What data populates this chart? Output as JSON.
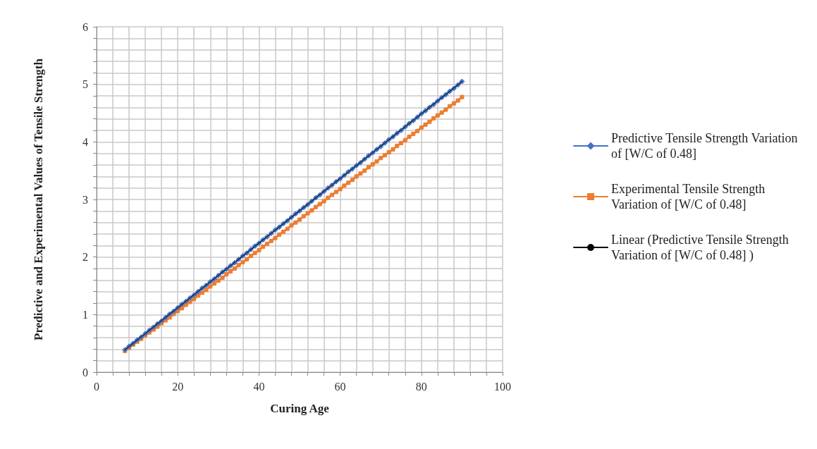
{
  "chart_data": {
    "type": "line",
    "xlabel": "Curing Age",
    "ylabel": "Predictive and Experimental Values of Tensile Strength",
    "x": [
      7,
      8,
      9,
      10,
      11,
      12,
      13,
      14,
      15,
      16,
      17,
      18,
      19,
      20,
      21,
      22,
      23,
      24,
      25,
      26,
      27,
      28,
      29,
      30,
      31,
      32,
      33,
      34,
      35,
      36,
      37,
      38,
      39,
      40,
      41,
      42,
      43,
      44,
      45,
      46,
      47,
      48,
      49,
      50,
      51,
      52,
      53,
      54,
      55,
      56,
      57,
      58,
      59,
      60,
      61,
      62,
      63,
      64,
      65,
      66,
      67,
      68,
      69,
      70,
      71,
      72,
      73,
      74,
      75,
      76,
      77,
      78,
      79,
      80,
      81,
      82,
      83,
      84,
      85,
      86,
      87,
      88,
      89,
      90
    ],
    "series": [
      {
        "name": "Predictive Tensile Strength Variation of [W/C of 0.48]",
        "color": "#4472c4",
        "marker": "diamond",
        "values": [
          0.39,
          0.45,
          0.5,
          0.56,
          0.61,
          0.67,
          0.73,
          0.78,
          0.84,
          0.89,
          0.95,
          1.01,
          1.06,
          1.12,
          1.18,
          1.23,
          1.29,
          1.34,
          1.4,
          1.46,
          1.51,
          1.57,
          1.62,
          1.68,
          1.74,
          1.79,
          1.85,
          1.9,
          1.96,
          2.02,
          2.07,
          2.13,
          2.19,
          2.24,
          2.3,
          2.35,
          2.41,
          2.47,
          2.52,
          2.58,
          2.63,
          2.69,
          2.75,
          2.8,
          2.86,
          2.91,
          2.97,
          3.03,
          3.08,
          3.14,
          3.2,
          3.25,
          3.31,
          3.36,
          3.42,
          3.48,
          3.53,
          3.59,
          3.64,
          3.7,
          3.76,
          3.81,
          3.87,
          3.92,
          3.98,
          4.04,
          4.09,
          4.15,
          4.2,
          4.26,
          4.32,
          4.37,
          4.43,
          4.49,
          4.54,
          4.6,
          4.65,
          4.71,
          4.77,
          4.82,
          4.88,
          4.93,
          4.99,
          5.05
        ]
      },
      {
        "name": "Experimental Tensile Strength Variation of [W/C of 0.48]",
        "color": "#ed7d31",
        "marker": "square",
        "values": [
          0.37,
          0.42,
          0.48,
          0.53,
          0.58,
          0.64,
          0.69,
          0.74,
          0.79,
          0.85,
          0.9,
          0.95,
          1.01,
          1.06,
          1.11,
          1.17,
          1.22,
          1.27,
          1.33,
          1.38,
          1.43,
          1.49,
          1.54,
          1.59,
          1.64,
          1.7,
          1.75,
          1.8,
          1.86,
          1.91,
          1.96,
          2.02,
          2.07,
          2.12,
          2.18,
          2.23,
          2.28,
          2.33,
          2.39,
          2.44,
          2.49,
          2.55,
          2.6,
          2.65,
          2.71,
          2.76,
          2.81,
          2.87,
          2.92,
          2.97,
          3.03,
          3.08,
          3.13,
          3.18,
          3.24,
          3.29,
          3.34,
          3.4,
          3.45,
          3.5,
          3.56,
          3.61,
          3.66,
          3.72,
          3.77,
          3.82,
          3.87,
          3.93,
          3.98,
          4.03,
          4.09,
          4.14,
          4.19,
          4.25,
          4.3,
          4.35,
          4.41,
          4.46,
          4.51,
          4.56,
          4.62,
          4.67,
          4.72,
          4.78
        ]
      },
      {
        "name": "Linear (Predictive Tensile Strength Variation of [W/C of 0.48] )",
        "color": "#000000",
        "marker": "none",
        "x": [
          7,
          90
        ],
        "values": [
          0.39,
          5.05
        ]
      }
    ],
    "xlim": [
      0,
      100
    ],
    "xticks": [
      0,
      {
        "value": 4,
        "label": null
      },
      {
        "value": 8,
        "label": null
      },
      {
        "value": 12,
        "label": null
      },
      {
        "value": 16,
        "label": null
      },
      20,
      {
        "value": 24,
        "label": null
      },
      {
        "value": 28,
        "label": null
      },
      {
        "value": 32,
        "label": null
      },
      {
        "value": 36,
        "label": null
      },
      40,
      {
        "value": 44,
        "label": null
      },
      {
        "value": 48,
        "label": null
      },
      {
        "value": 52,
        "label": null
      },
      {
        "value": 56,
        "label": null
      },
      60,
      {
        "value": 64,
        "label": null
      },
      {
        "value": 68,
        "label": null
      },
      {
        "value": 72,
        "label": null
      },
      {
        "value": 76,
        "label": null
      },
      80,
      {
        "value": 84,
        "label": null
      },
      {
        "value": 88,
        "label": null
      },
      {
        "value": 92,
        "label": null
      },
      {
        "value": 96,
        "label": null
      },
      100
    ],
    "ylim": [
      0,
      6
    ],
    "yticks": [
      0,
      {
        "value": 0.2,
        "label": null
      },
      {
        "value": 0.4,
        "label": null
      },
      {
        "value": 0.6,
        "label": null
      },
      {
        "value": 0.8,
        "label": null
      },
      1,
      {
        "value": 1.2,
        "label": null
      },
      {
        "value": 1.4,
        "label": null
      },
      {
        "value": 1.6,
        "label": null
      },
      {
        "value": 1.8,
        "label": null
      },
      2,
      {
        "value": 2.2,
        "label": null
      },
      {
        "value": 2.4,
        "label": null
      },
      {
        "value": 2.6,
        "label": null
      },
      {
        "value": 2.8,
        "label": null
      },
      3,
      {
        "value": 3.2,
        "label": null
      },
      {
        "value": 3.4,
        "label": null
      },
      {
        "value": 3.6,
        "label": null
      },
      {
        "value": 3.8,
        "label": null
      },
      4,
      {
        "value": 4.2,
        "label": null
      },
      {
        "value": 4.4,
        "label": null
      },
      {
        "value": 4.6,
        "label": null
      },
      {
        "value": 4.8,
        "label": null
      },
      5,
      {
        "value": 5.2,
        "label": null
      },
      {
        "value": 5.4,
        "label": null
      },
      {
        "value": 5.6,
        "label": null
      },
      {
        "value": 5.8,
        "label": null
      },
      6
    ],
    "grid": true,
    "legend": "right"
  }
}
